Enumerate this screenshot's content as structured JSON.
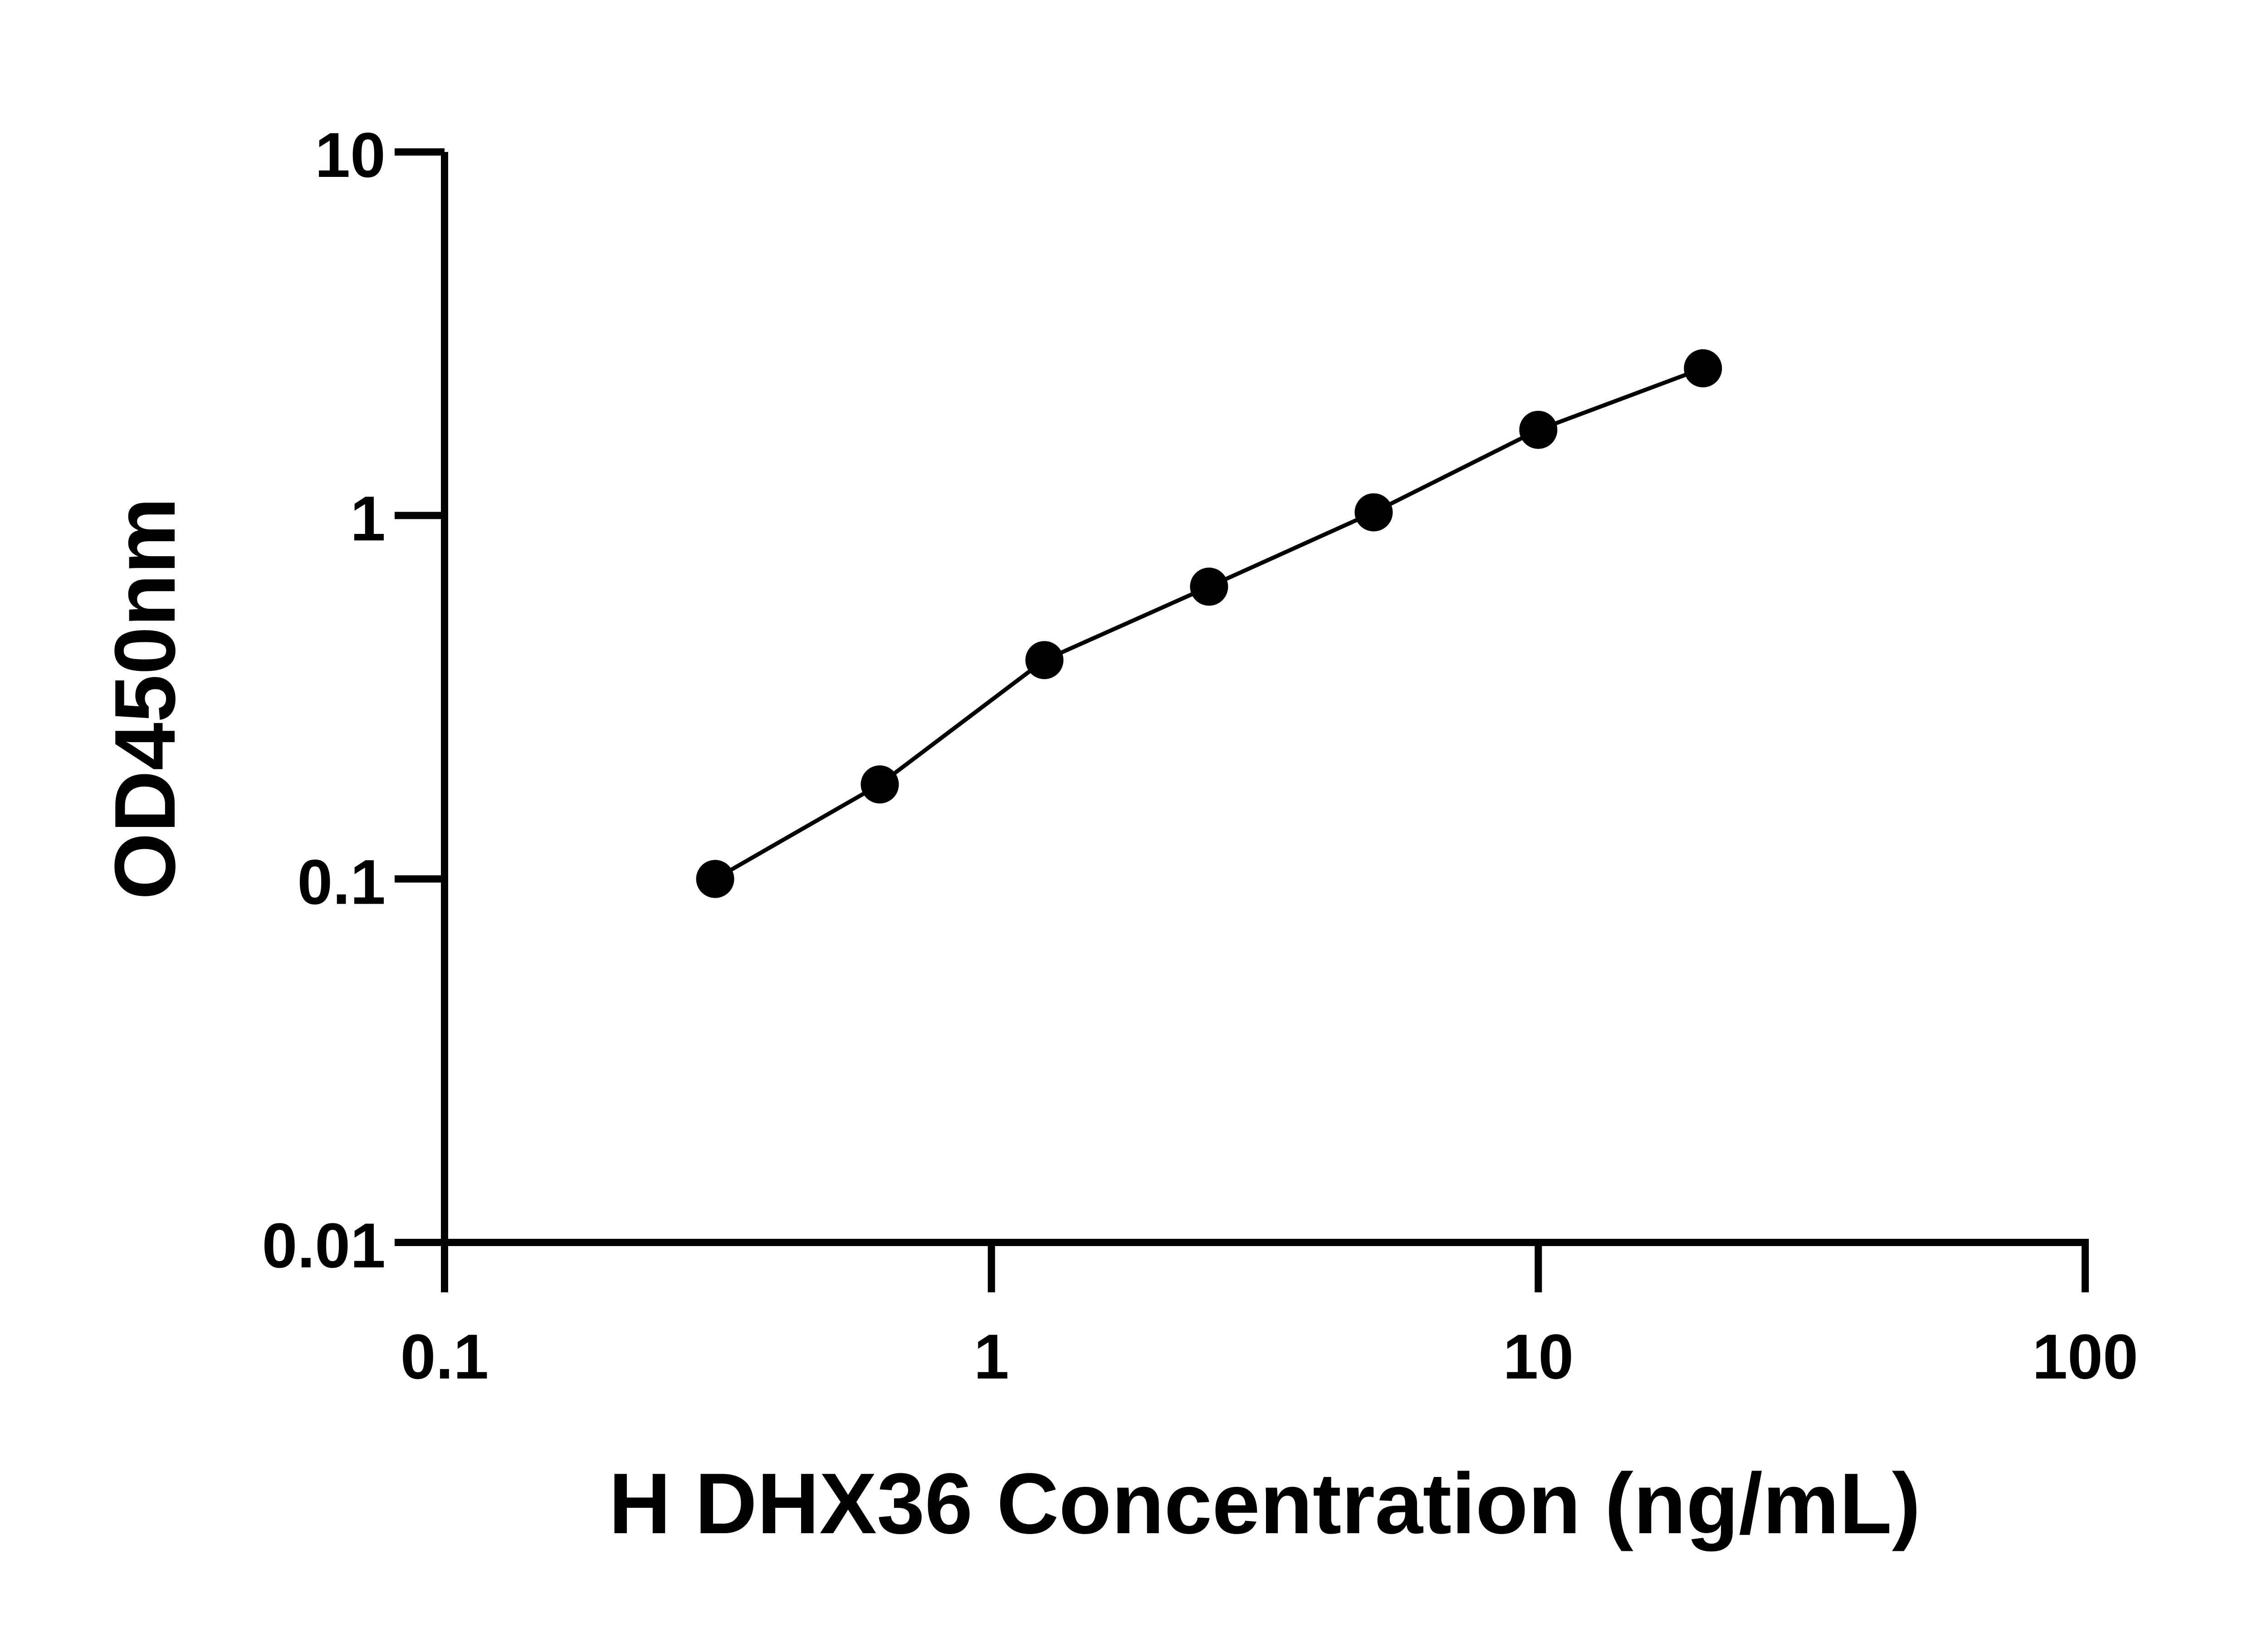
{
  "chart_data": {
    "type": "line",
    "title": "",
    "xlabel": "H DHX36 Concentration (ng/mL)",
    "ylabel": "OD450nm",
    "x_scale": "log",
    "y_scale": "log",
    "xlim": [
      0.1,
      100
    ],
    "ylim": [
      0.01,
      10
    ],
    "x_ticks": [
      "0.1",
      "1",
      "10",
      "100"
    ],
    "y_ticks": [
      "0.01",
      "0.1",
      "1",
      "10"
    ],
    "grid": false,
    "legend": "none",
    "series": [
      {
        "x": [
          0.3125,
          0.625,
          1.25,
          2.5,
          5,
          10,
          20
        ],
        "y": [
          0.1,
          0.182,
          0.4,
          0.637,
          1.02,
          1.72,
          2.54
        ],
        "color": "#000000",
        "marker": "filled-circle",
        "fit_line": true
      }
    ]
  }
}
